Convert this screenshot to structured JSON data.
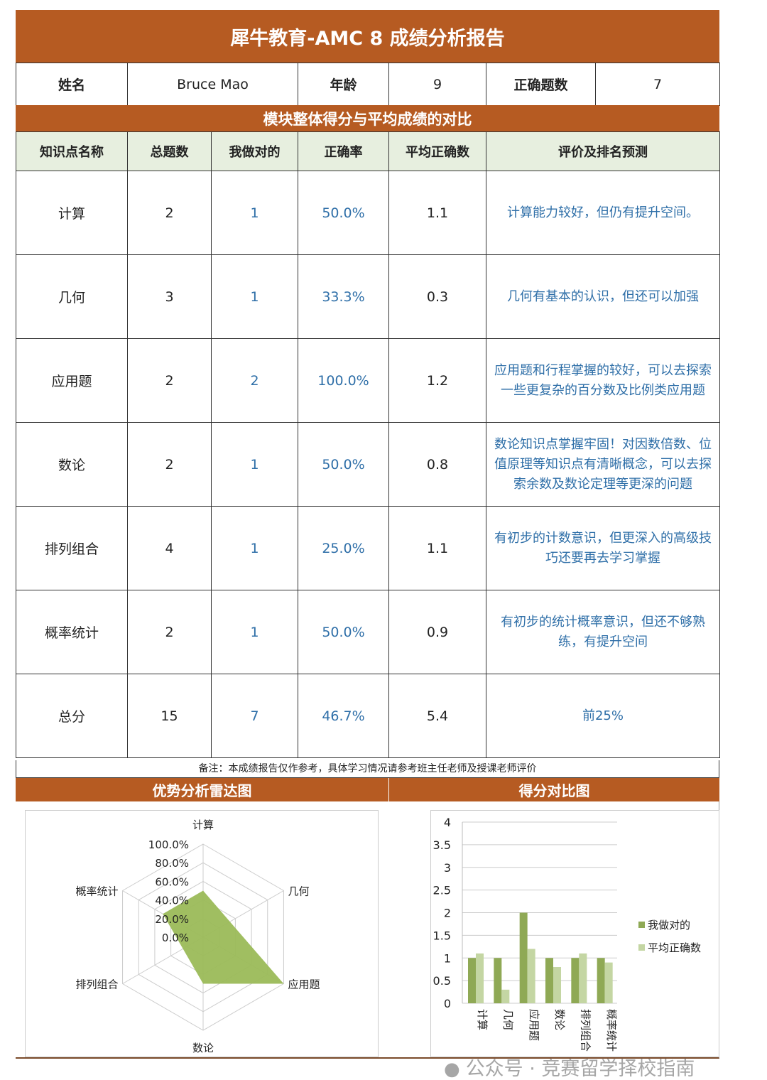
{
  "title": "犀牛教育-AMC 8 成绩分析报告",
  "info": {
    "name_label": "姓名",
    "name": "Bruce Mao",
    "age_label": "年龄",
    "age": "9",
    "correct_label": "正确题数",
    "correct": "7"
  },
  "section_title": "模块整体得分与平均成绩的对比",
  "columns": [
    "知识点名称",
    "总题数",
    "我做对的",
    "正确率",
    "平均正确数",
    "评价及排名预测"
  ],
  "rows": [
    {
      "topic": "计算",
      "total": "2",
      "mine": "1",
      "rate": "50.0%",
      "avg": "1.1",
      "comment": "计算能力较好，但仍有提升空间。"
    },
    {
      "topic": "几何",
      "total": "3",
      "mine": "1",
      "rate": "33.3%",
      "avg": "0.3",
      "comment": "几何有基本的认识，但还可以加强"
    },
    {
      "topic": "应用题",
      "total": "2",
      "mine": "2",
      "rate": "100.0%",
      "avg": "1.2",
      "comment": "应用题和行程掌握的较好，可以去探索一些更复杂的百分数及比例类应用题"
    },
    {
      "topic": "数论",
      "total": "2",
      "mine": "1",
      "rate": "50.0%",
      "avg": "0.8",
      "comment": "数论知识点掌握牢固！对因数倍数、位值原理等知识点有清晰概念，可以去探索余数及数论定理等更深的问题"
    },
    {
      "topic": "排列组合",
      "total": "4",
      "mine": "1",
      "rate": "25.0%",
      "avg": "1.1",
      "comment": "有初步的计数意识，但更深入的高级技巧还要再去学习掌握"
    },
    {
      "topic": "概率统计",
      "total": "2",
      "mine": "1",
      "rate": "50.0%",
      "avg": "0.9",
      "comment": "有初步的统计概率意识，但还不够熟练，有提升空间"
    },
    {
      "topic": "总分",
      "total": "15",
      "mine": "7",
      "rate": "46.7%",
      "avg": "5.4",
      "comment": "前25%"
    }
  ],
  "note": "备注：本成绩报告仅作参考，具体学习情况请参考班主任老师及授课老师评价",
  "radar_title": "优势分析雷达图",
  "bar_title": "得分对比图",
  "watermark": "公众号 · 竞赛留学择校指南",
  "colors": {
    "header": "#b65b22",
    "subheader": "#e7efdf",
    "series_mine": "#8fa955",
    "series_avg": "#c4d6a3",
    "radar_fill": "#9bbb59",
    "comment_text": "#2f6fa8"
  },
  "chart_data": [
    {
      "type": "radar",
      "categories": [
        "计算",
        "几何",
        "应用题",
        "数论",
        "排列组合",
        "概率统计"
      ],
      "values": [
        0.5,
        0.333,
        1.0,
        0.5,
        0.25,
        0.5
      ],
      "ticks": [
        "0.0%",
        "20.0%",
        "40.0%",
        "60.0%",
        "80.0%",
        "100.0%"
      ],
      "rlim": [
        0,
        1
      ]
    },
    {
      "type": "bar",
      "categories": [
        "计算",
        "几何",
        "应用题",
        "数论",
        "排列组合",
        "概率统计"
      ],
      "series": [
        {
          "name": "我做对的",
          "values": [
            1,
            1,
            2,
            1,
            1,
            1
          ]
        },
        {
          "name": "平均正确数",
          "values": [
            1.1,
            0.3,
            1.2,
            0.8,
            1.1,
            0.9
          ]
        }
      ],
      "yticks": [
        "0",
        "0.5",
        "1",
        "1.5",
        "2",
        "2.5",
        "3",
        "3.5",
        "4"
      ],
      "ylim": [
        0,
        4
      ],
      "grid": true,
      "legend": "right"
    }
  ]
}
